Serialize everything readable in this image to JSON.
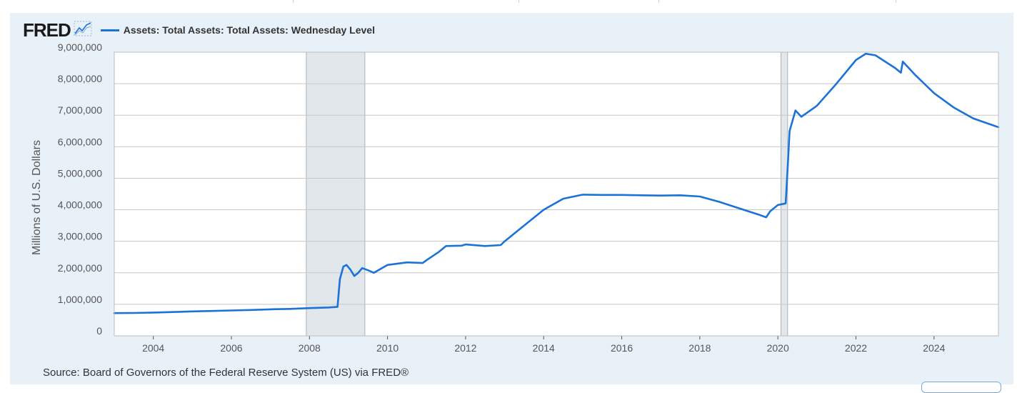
{
  "brand": {
    "logo_text": "FRED",
    "logo_icon": "chart-line-icon"
  },
  "source_text": "Source: Board of Governors of the Federal Reserve System (US) via FRED®",
  "colors": {
    "line": "#1b72d8",
    "recession": "#e2e7ec",
    "panel": "#e9f1f8",
    "grid": "#c8c8c8"
  },
  "chart_data": {
    "type": "line",
    "title": "",
    "xlabel": "",
    "ylabel": "Millions of U.S. Dollars",
    "xlim": [
      2003.0,
      2025.65
    ],
    "ylim": [
      0,
      9000000
    ],
    "yticks": [
      0,
      1000000,
      2000000,
      3000000,
      4000000,
      5000000,
      6000000,
      7000000,
      8000000,
      9000000
    ],
    "ytick_labels": [
      "0",
      "1,000,000",
      "2,000,000",
      "3,000,000",
      "4,000,000",
      "5,000,000",
      "6,000,000",
      "7,000,000",
      "8,000,000",
      "9,000,000"
    ],
    "xticks": [
      2004,
      2006,
      2008,
      2010,
      2012,
      2014,
      2016,
      2018,
      2020,
      2022,
      2024
    ],
    "xtick_labels": [
      "2004",
      "2006",
      "2008",
      "2010",
      "2012",
      "2014",
      "2016",
      "2018",
      "2020",
      "2022",
      "2024"
    ],
    "grid": true,
    "legend": "top-left",
    "recessions": [
      {
        "start": 2007.92,
        "end": 2009.42
      },
      {
        "start": 2020.08,
        "end": 2020.25
      }
    ],
    "series": [
      {
        "name": "Assets: Total Assets: Total Assets: Wednesday Level",
        "points": [
          [
            2003.0,
            720000
          ],
          [
            2003.5,
            725000
          ],
          [
            2004.0,
            740000
          ],
          [
            2004.5,
            755000
          ],
          [
            2005.0,
            775000
          ],
          [
            2005.5,
            790000
          ],
          [
            2006.0,
            805000
          ],
          [
            2006.5,
            820000
          ],
          [
            2007.0,
            840000
          ],
          [
            2007.5,
            855000
          ],
          [
            2008.0,
            880000
          ],
          [
            2008.5,
            900000
          ],
          [
            2008.72,
            920000
          ],
          [
            2008.78,
            1800000
          ],
          [
            2008.87,
            2200000
          ],
          [
            2008.95,
            2250000
          ],
          [
            2009.05,
            2100000
          ],
          [
            2009.15,
            1900000
          ],
          [
            2009.25,
            2000000
          ],
          [
            2009.35,
            2150000
          ],
          [
            2009.5,
            2080000
          ],
          [
            2009.65,
            2000000
          ],
          [
            2010.0,
            2250000
          ],
          [
            2010.5,
            2330000
          ],
          [
            2010.9,
            2310000
          ],
          [
            2011.0,
            2400000
          ],
          [
            2011.3,
            2650000
          ],
          [
            2011.5,
            2850000
          ],
          [
            2011.9,
            2860000
          ],
          [
            2012.0,
            2900000
          ],
          [
            2012.5,
            2850000
          ],
          [
            2012.9,
            2880000
          ],
          [
            2013.0,
            3000000
          ],
          [
            2013.5,
            3500000
          ],
          [
            2014.0,
            4000000
          ],
          [
            2014.5,
            4350000
          ],
          [
            2015.0,
            4480000
          ],
          [
            2015.5,
            4470000
          ],
          [
            2016.0,
            4470000
          ],
          [
            2016.5,
            4460000
          ],
          [
            2017.0,
            4450000
          ],
          [
            2017.5,
            4460000
          ],
          [
            2018.0,
            4420000
          ],
          [
            2018.5,
            4250000
          ],
          [
            2019.0,
            4050000
          ],
          [
            2019.5,
            3850000
          ],
          [
            2019.7,
            3760000
          ],
          [
            2019.8,
            3950000
          ],
          [
            2020.0,
            4150000
          ],
          [
            2020.2,
            4200000
          ],
          [
            2020.25,
            5300000
          ],
          [
            2020.3,
            6500000
          ],
          [
            2020.45,
            7150000
          ],
          [
            2020.6,
            6950000
          ],
          [
            2021.0,
            7300000
          ],
          [
            2021.5,
            8000000
          ],
          [
            2022.0,
            8750000
          ],
          [
            2022.25,
            8950000
          ],
          [
            2022.5,
            8900000
          ],
          [
            2023.0,
            8500000
          ],
          [
            2023.15,
            8350000
          ],
          [
            2023.2,
            8700000
          ],
          [
            2023.5,
            8300000
          ],
          [
            2024.0,
            7700000
          ],
          [
            2024.5,
            7250000
          ],
          [
            2025.0,
            6900000
          ],
          [
            2025.65,
            6620000
          ]
        ]
      }
    ]
  }
}
